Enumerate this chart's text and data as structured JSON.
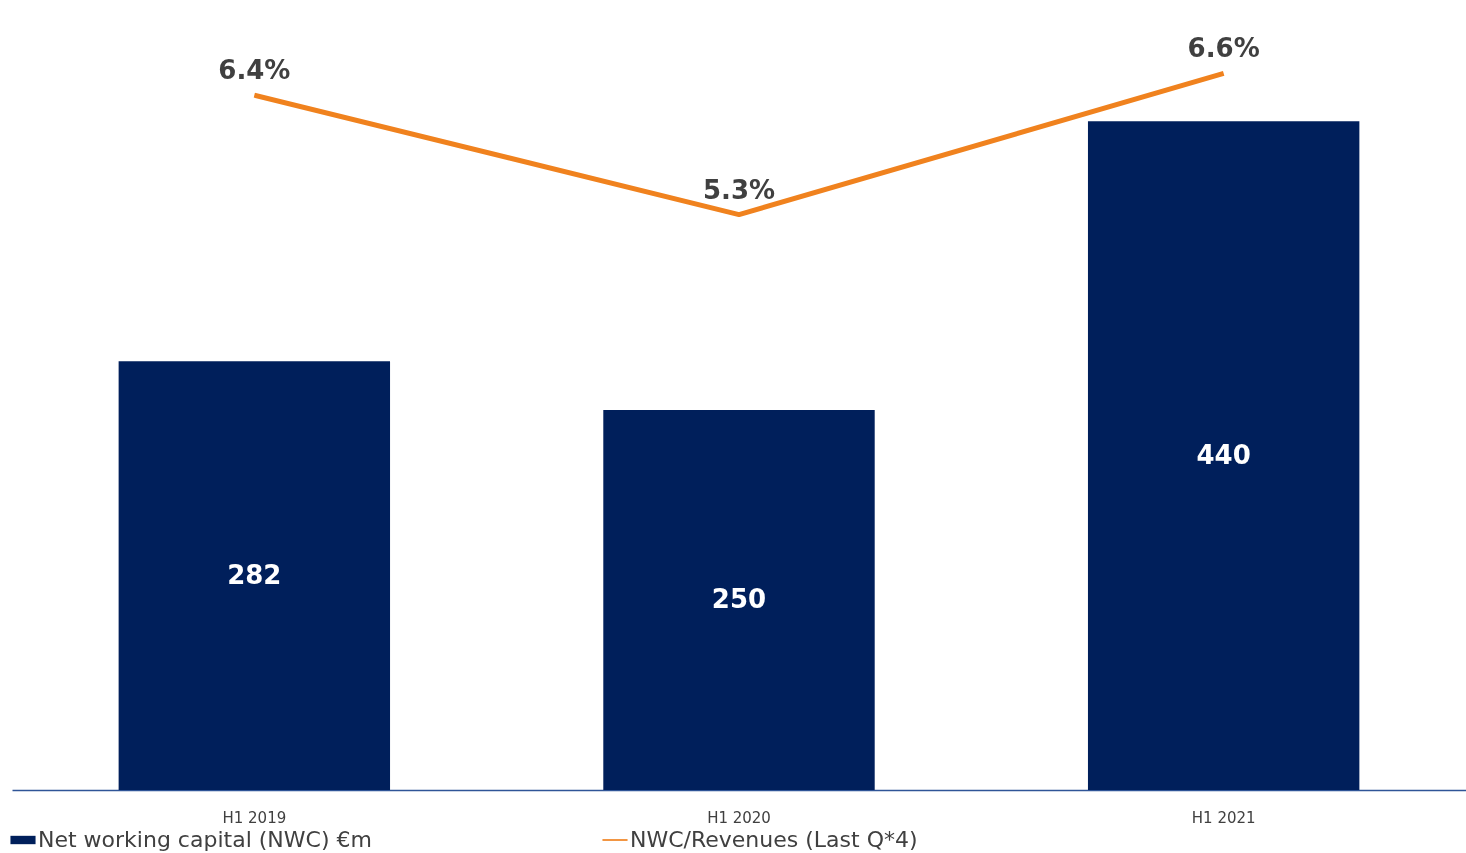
{
  "chart_data": {
    "type": "bar",
    "categories": [
      "H1 2019",
      "H1 2020",
      "H1 2021"
    ],
    "series": [
      {
        "name": "Net working capital (NWC) €m",
        "color": "#001f5b",
        "values": [
          282,
          250,
          440
        ],
        "value_labels": [
          "282",
          "250",
          "440"
        ]
      },
      {
        "name": "NWC/Revenues (Last Q*4)",
        "type": "line",
        "axis": "y2",
        "color": "#f0821e",
        "values": [
          6.4,
          5.3,
          6.6
        ],
        "value_labels": [
          "6.4%",
          "5.3%",
          "6.6%"
        ]
      }
    ],
    "tick_labels": "x",
    "grid": false,
    "legend": "bottom",
    "marker": "none",
    "line_style": "solid"
  }
}
